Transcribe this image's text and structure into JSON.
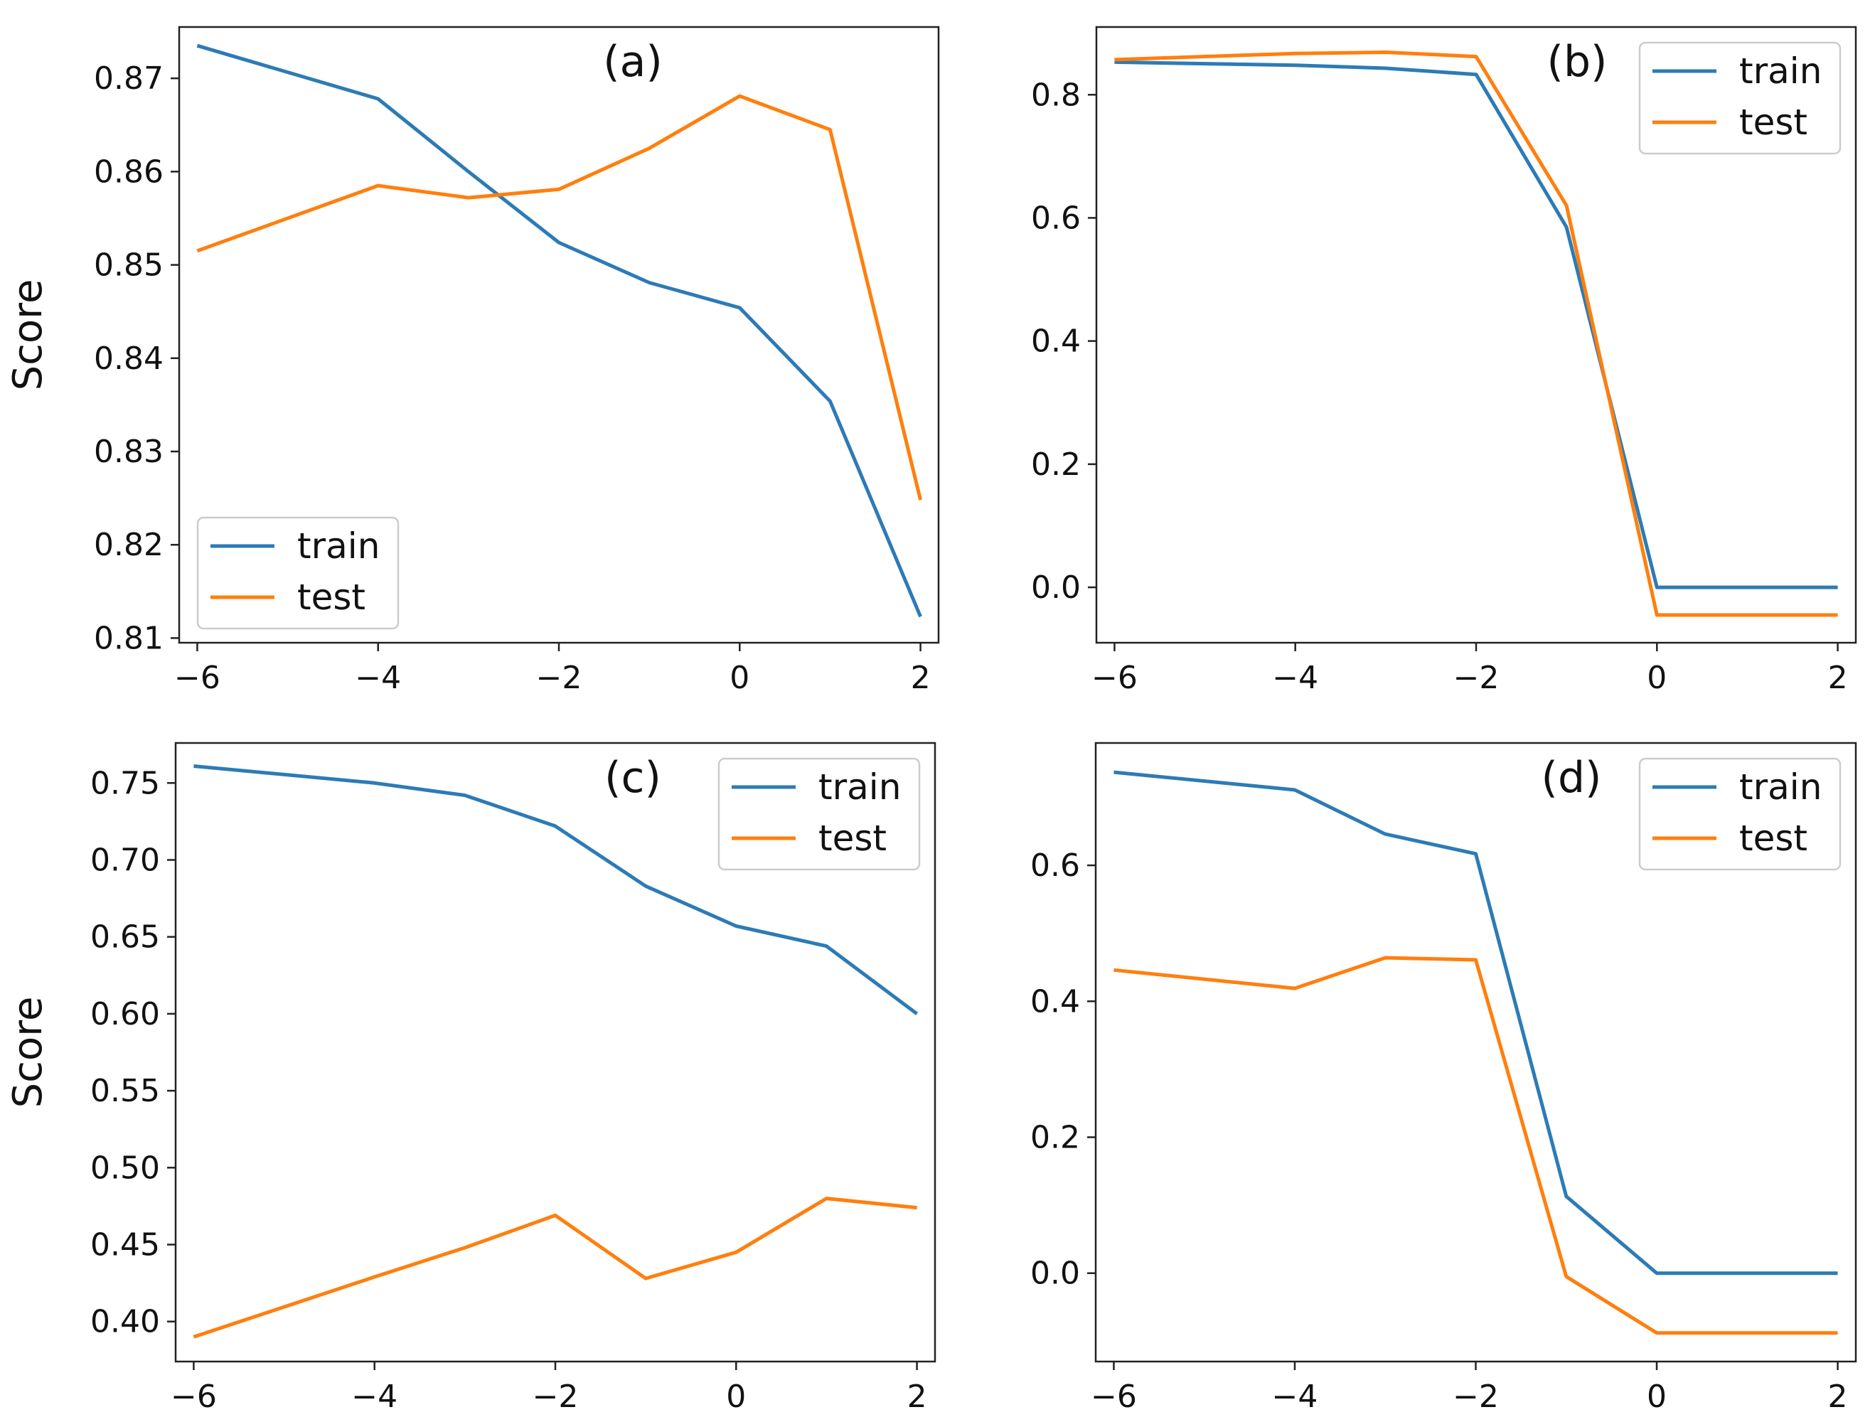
{
  "figure": {
    "colors": {
      "train": "#2c7bb6",
      "test": "#ff7f0e",
      "axis": "#222222",
      "legend_border": "#cccccc"
    }
  },
  "chart_data": [
    {
      "type": "line",
      "panel_label": "(a)",
      "ylabel": "Score",
      "xlabel": "",
      "xlim": [
        -6.2,
        2.2
      ],
      "ylim": [
        0.8095,
        0.8755
      ],
      "xticks": [
        -6,
        -4,
        -2,
        0,
        2
      ],
      "xtick_labels": [
        "−6",
        "−4",
        "−2",
        "0",
        "2"
      ],
      "yticks": [
        0.81,
        0.82,
        0.83,
        0.84,
        0.85,
        0.86,
        0.87
      ],
      "ytick_labels": [
        "0.81",
        "0.82",
        "0.83",
        "0.84",
        "0.85",
        "0.86",
        "0.87"
      ],
      "legend": {
        "location": "lower-left",
        "entries": [
          "train",
          "test"
        ]
      },
      "series": [
        {
          "name": "train",
          "x": [
            -6,
            -4,
            -3,
            -2,
            -1,
            0,
            1,
            2
          ],
          "values": [
            0.8735,
            0.8678,
            0.86,
            0.8524,
            0.8481,
            0.8454,
            0.8354,
            0.8123
          ]
        },
        {
          "name": "test",
          "x": [
            -6,
            -4,
            -3,
            -2,
            -1,
            0,
            1,
            2
          ],
          "values": [
            0.8515,
            0.8585,
            0.8572,
            0.8581,
            0.8625,
            0.8681,
            0.8645,
            0.8248
          ]
        }
      ]
    },
    {
      "type": "line",
      "panel_label": "(b)",
      "ylabel": "",
      "xlabel": "",
      "xlim": [
        -6.2,
        2.2
      ],
      "ylim": [
        -0.09,
        0.91
      ],
      "xticks": [
        -6,
        -4,
        -2,
        0,
        2
      ],
      "xtick_labels": [
        "−6",
        "−4",
        "−2",
        "0",
        "2"
      ],
      "yticks": [
        0.0,
        0.2,
        0.4,
        0.6,
        0.8
      ],
      "ytick_labels": [
        "0.0",
        "0.2",
        "0.4",
        "0.6",
        "0.8"
      ],
      "legend": {
        "location": "upper-right",
        "entries": [
          "train",
          "test"
        ]
      },
      "series": [
        {
          "name": "train",
          "x": [
            -6,
            -4,
            -3,
            -2,
            -1,
            0,
            1,
            2
          ],
          "values": [
            0.853,
            0.848,
            0.843,
            0.833,
            0.585,
            0.0,
            0.0,
            0.0
          ]
        },
        {
          "name": "test",
          "x": [
            -6,
            -4,
            -3,
            -2,
            -1,
            0,
            1,
            2
          ],
          "values": [
            0.857,
            0.867,
            0.869,
            0.862,
            0.62,
            -0.045,
            -0.045,
            -0.045
          ]
        }
      ]
    },
    {
      "type": "line",
      "panel_label": "(c)",
      "ylabel": "Score",
      "xlabel": "",
      "xlim": [
        -6.2,
        2.2
      ],
      "ylim": [
        0.374,
        0.776
      ],
      "xticks": [
        -6,
        -4,
        -2,
        0,
        2
      ],
      "xtick_labels": [
        "−6",
        "−4",
        "−2",
        "0",
        "2"
      ],
      "yticks": [
        0.4,
        0.45,
        0.5,
        0.55,
        0.6,
        0.65,
        0.7,
        0.75
      ],
      "ytick_labels": [
        "0.40",
        "0.45",
        "0.50",
        "0.55",
        "0.60",
        "0.65",
        "0.70",
        "0.75"
      ],
      "legend": {
        "location": "upper-right",
        "entries": [
          "train",
          "test"
        ]
      },
      "series": [
        {
          "name": "train",
          "x": [
            -6,
            -4,
            -3,
            -2,
            -1,
            0,
            1,
            2
          ],
          "values": [
            0.761,
            0.75,
            0.742,
            0.722,
            0.683,
            0.657,
            0.644,
            0.6
          ]
        },
        {
          "name": "test",
          "x": [
            -6,
            -4,
            -3,
            -2,
            -1,
            0,
            1,
            2
          ],
          "values": [
            0.39,
            0.429,
            0.448,
            0.469,
            0.428,
            0.445,
            0.48,
            0.474
          ]
        }
      ]
    },
    {
      "type": "line",
      "panel_label": "(d)",
      "ylabel": "",
      "xlabel": "",
      "xlim": [
        -6.2,
        2.2
      ],
      "ylim": [
        -0.13,
        0.78
      ],
      "xticks": [
        -6,
        -4,
        -2,
        0,
        2
      ],
      "xtick_labels": [
        "−6",
        "−4",
        "−2",
        "0",
        "2"
      ],
      "yticks": [
        0.0,
        0.2,
        0.4,
        0.6
      ],
      "ytick_labels": [
        "0.0",
        "0.2",
        "0.4",
        "0.6"
      ],
      "legend": {
        "location": "upper-right",
        "entries": [
          "train",
          "test"
        ]
      },
      "series": [
        {
          "name": "train",
          "x": [
            -6,
            -4,
            -3,
            -2,
            -1,
            0,
            1,
            2
          ],
          "values": [
            0.737,
            0.711,
            0.646,
            0.617,
            0.113,
            0.0,
            0.0,
            0.0
          ]
        },
        {
          "name": "test",
          "x": [
            -6,
            -4,
            -3,
            -2,
            -1,
            0,
            1,
            2
          ],
          "values": [
            0.446,
            0.419,
            0.464,
            0.461,
            -0.005,
            -0.088,
            -0.088,
            -0.088
          ]
        }
      ]
    }
  ]
}
